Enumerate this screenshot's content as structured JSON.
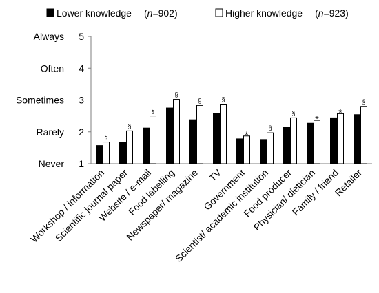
{
  "chart_data": {
    "type": "bar",
    "title": "",
    "xlabel": "",
    "ylabel": "",
    "ylim": [
      1,
      5
    ],
    "yticks": [
      1,
      2,
      3,
      4,
      5
    ],
    "ytick_labels": [
      "Never",
      "Rarely",
      "Sometimes",
      "Often",
      "Always"
    ],
    "grid": false,
    "legend_position": "top",
    "categories": [
      "Workshop / information",
      "Scientific journal  paper",
      "Website /  e-mail",
      "Food labelling",
      "Newspaper/ magazine",
      "TV",
      "Government",
      "Scientist/ academic institution",
      "Food producer",
      "Physician/ dietician",
      "Family / friend",
      "Retailer"
    ],
    "series": [
      {
        "name": "Lower knowledge",
        "n_label": "(n=902)",
        "color": "#000000",
        "values": [
          1.57,
          1.68,
          2.12,
          2.75,
          2.38,
          2.58,
          1.78,
          1.76,
          2.15,
          2.27,
          2.44,
          2.54
        ]
      },
      {
        "name": "Higher knowledge",
        "n_label": "(n=923)",
        "color": "#ffffff",
        "values": [
          1.68,
          2.03,
          2.5,
          3.02,
          2.83,
          2.87,
          1.87,
          1.97,
          2.44,
          2.36,
          2.57,
          2.8
        ]
      }
    ],
    "significance_markers": [
      "§",
      "§",
      "§",
      "§",
      "§",
      "§",
      "*",
      "§",
      "§",
      "*",
      "*",
      "§"
    ]
  },
  "legend": {
    "items": [
      {
        "name": "Lower knowledge",
        "pre": "(",
        "n_var": "n",
        "n_val": "=902)"
      },
      {
        "name": "Higher knowledge",
        "pre": "(",
        "n_var": "n",
        "n_val": "=923)"
      }
    ]
  }
}
